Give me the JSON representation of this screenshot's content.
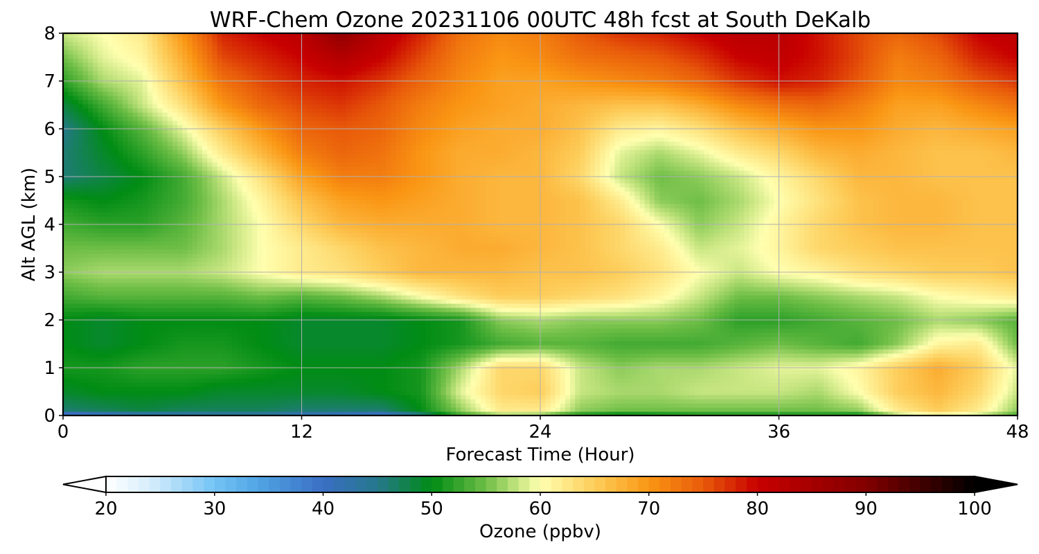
{
  "chart_data": {
    "type": "heatmap",
    "title": "WRF-Chem Ozone  20231106 00UTC 48h fcst at South DeKalb",
    "xlabel": "Forecast Time (Hour)",
    "ylabel": "Alt AGL (km)",
    "xlim": [
      0,
      48
    ],
    "ylim": [
      0,
      8
    ],
    "xticks": [
      "0",
      "12",
      "24",
      "36",
      "48"
    ],
    "yticks": [
      "0",
      "1",
      "2",
      "3",
      "4",
      "5",
      "6",
      "7",
      "8"
    ],
    "grid": true,
    "colorbar": {
      "label": "Ozone  (ppbv)",
      "range": [
        20,
        100
      ],
      "ticks": [
        "20",
        "30",
        "40",
        "50",
        "60",
        "70",
        "80",
        "90",
        "100"
      ],
      "extend": "both",
      "orientation": "horizontal"
    },
    "x": [
      0,
      2,
      4,
      6,
      8,
      10,
      12,
      14,
      16,
      18,
      20,
      22,
      24,
      26,
      28,
      30,
      32,
      34,
      36,
      38,
      40,
      42,
      44,
      46,
      48
    ],
    "y": [
      0,
      0.1,
      0.5,
      1,
      1.5,
      2,
      2.5,
      3,
      3.5,
      4,
      4.5,
      5,
      5.5,
      6,
      6.5,
      7,
      7.5,
      8
    ],
    "z": [
      [
        36,
        38,
        40,
        41,
        42,
        42,
        40,
        39,
        37,
        44,
        52,
        55,
        54,
        50,
        48,
        49,
        50,
        50,
        50,
        50,
        49,
        56,
        59,
        57,
        53
      ],
      [
        46,
        47,
        48,
        47,
        47,
        47,
        46,
        46,
        46,
        50,
        56,
        62,
        62,
        56,
        55,
        55,
        55,
        55,
        55,
        55,
        56,
        62,
        65,
        62,
        56
      ],
      [
        49,
        50,
        50,
        50,
        49,
        49,
        49,
        49,
        50,
        51,
        59,
        64,
        65,
        58,
        57,
        57,
        58,
        58,
        58,
        57,
        60,
        65,
        67,
        64,
        58
      ],
      [
        51,
        51,
        52,
        52,
        52,
        51,
        50,
        50,
        50,
        51,
        57,
        64,
        64,
        58,
        56,
        57,
        57,
        58,
        59,
        59,
        61,
        65,
        68,
        65,
        59
      ],
      [
        50,
        49,
        50,
        51,
        51,
        50,
        49,
        49,
        49,
        50,
        51,
        53,
        54,
        54,
        53,
        53,
        53,
        54,
        55,
        54,
        53,
        56,
        61,
        62,
        55
      ],
      [
        50,
        49,
        50,
        50,
        50,
        50,
        49,
        49,
        49,
        50,
        51,
        56,
        57,
        56,
        56,
        56,
        55,
        52,
        52,
        53,
        54,
        55,
        57,
        56,
        54
      ],
      [
        53,
        54,
        54,
        54,
        54,
        55,
        54,
        55,
        57,
        60,
        63,
        65,
        65,
        64,
        63,
        61,
        58,
        55,
        55,
        56,
        57,
        58,
        60,
        61,
        62
      ],
      [
        56,
        57,
        57,
        57,
        58,
        60,
        62,
        63,
        65,
        67,
        67,
        67,
        66,
        66,
        65,
        63,
        60,
        58,
        60,
        61,
        63,
        64,
        65,
        65,
        66
      ],
      [
        55,
        55,
        55,
        55,
        57,
        60,
        62,
        64,
        66,
        67,
        68,
        68,
        67,
        66,
        64,
        62,
        58,
        59,
        61,
        64,
        65,
        66,
        66,
        66,
        66
      ],
      [
        53,
        52,
        52,
        54,
        57,
        60,
        64,
        67,
        68,
        68,
        68,
        67,
        67,
        66,
        64,
        60,
        56,
        58,
        61,
        64,
        66,
        67,
        67,
        66,
        66
      ],
      [
        51,
        50,
        51,
        53,
        57,
        61,
        66,
        69,
        70,
        69,
        68,
        67,
        67,
        66,
        62,
        56,
        55,
        57,
        60,
        63,
        66,
        67,
        67,
        66,
        66
      ],
      [
        46,
        48,
        50,
        53,
        58,
        63,
        69,
        72,
        72,
        70,
        68,
        67,
        67,
        64,
        58,
        55,
        56,
        58,
        61,
        64,
        67,
        67,
        66,
        66,
        66
      ],
      [
        46,
        49,
        52,
        56,
        62,
        67,
        72,
        74,
        73,
        70,
        68,
        68,
        67,
        65,
        59,
        57,
        59,
        62,
        64,
        67,
        68,
        67,
        66,
        66,
        67
      ],
      [
        45,
        50,
        54,
        59,
        65,
        70,
        74,
        75,
        74,
        71,
        69,
        68,
        68,
        66,
        62,
        61,
        63,
        66,
        68,
        70,
        70,
        68,
        67,
        68,
        69
      ],
      [
        48,
        53,
        58,
        63,
        70,
        74,
        76,
        77,
        75,
        72,
        70,
        69,
        68,
        67,
        66,
        66,
        68,
        71,
        73,
        74,
        72,
        69,
        69,
        71,
        73
      ],
      [
        52,
        57,
        59,
        66,
        73,
        76,
        78,
        79,
        77,
        74,
        71,
        69,
        69,
        70,
        71,
        72,
        74,
        77,
        79,
        78,
        75,
        71,
        72,
        75,
        77
      ],
      [
        55,
        59,
        61,
        68,
        76,
        78,
        80,
        83,
        80,
        76,
        72,
        70,
        71,
        73,
        74,
        75,
        77,
        80,
        81,
        79,
        76,
        72,
        74,
        78,
        80
      ],
      [
        58,
        60,
        62,
        70,
        78,
        80,
        82,
        88,
        82,
        78,
        73,
        71,
        72,
        75,
        77,
        78,
        80,
        82,
        82,
        79,
        76,
        74,
        76,
        80,
        82
      ]
    ]
  }
}
